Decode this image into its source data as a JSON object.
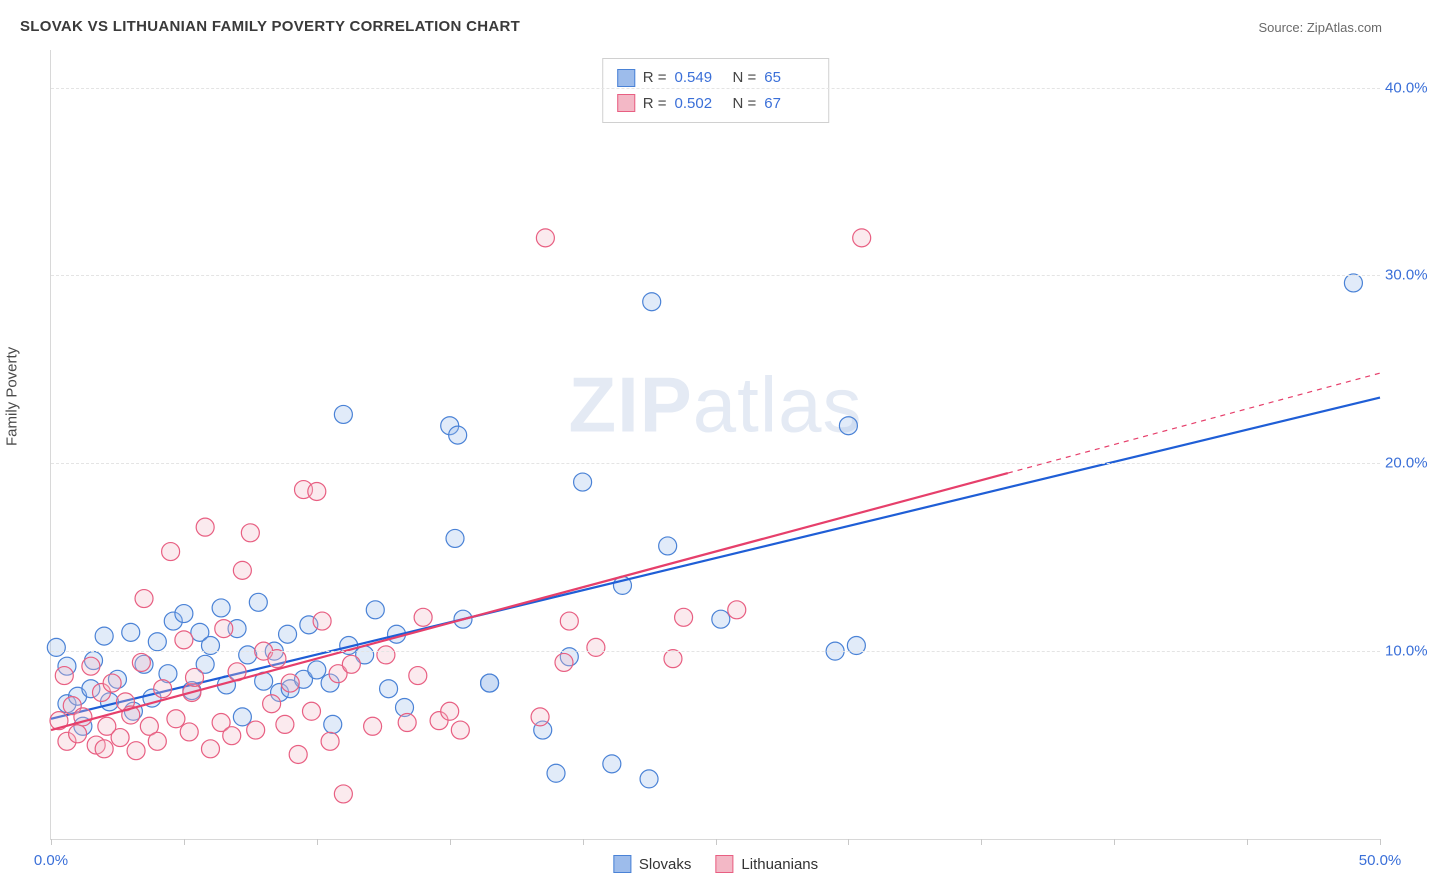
{
  "title": "SLOVAK VS LITHUANIAN FAMILY POVERTY CORRELATION CHART",
  "source_label": "Source: ZipAtlas.com",
  "y_axis_label": "Family Poverty",
  "watermark": {
    "a": "ZIP",
    "b": "atlas"
  },
  "chart": {
    "type": "scatter",
    "xlim": [
      0,
      50
    ],
    "ylim": [
      0,
      42
    ],
    "x_ticks": [
      0,
      5,
      10,
      15,
      20,
      25,
      30,
      35,
      40,
      45,
      50
    ],
    "x_tick_labels": {
      "0": "0.0%",
      "50": "50.0%"
    },
    "y_grid": [
      10,
      20,
      30,
      40
    ],
    "y_tick_labels": {
      "10": "10.0%",
      "20": "20.0%",
      "30": "30.0%",
      "40": "40.0%"
    },
    "background_color": "#ffffff",
    "grid_color": "#e4e4e4",
    "axis_color": "#d8d8d8",
    "tick_color": "#c8c8c8",
    "label_color": "#3a6fd8",
    "point_radius": 9,
    "point_stroke_width": 1.2,
    "point_fill_opacity": 0.3,
    "trend_line_width": 2.2,
    "series": [
      {
        "name": "Slovaks",
        "color_fill": "#9dbceb",
        "color_stroke": "#4a82d6",
        "line_color": "#1f5ed6",
        "r_value": "0.549",
        "n_value": "65",
        "trend": {
          "x1": 0,
          "y1": 6.4,
          "x2": 50,
          "y2": 23.5
        },
        "trend_dash_from_x": null,
        "points": [
          [
            0.2,
            10.2
          ],
          [
            0.6,
            9.2
          ],
          [
            0.6,
            7.2
          ],
          [
            1.0,
            7.6
          ],
          [
            1.2,
            6.0
          ],
          [
            1.5,
            8.0
          ],
          [
            1.6,
            9.5
          ],
          [
            2.0,
            10.8
          ],
          [
            2.2,
            7.3
          ],
          [
            2.5,
            8.5
          ],
          [
            3.0,
            11.0
          ],
          [
            3.1,
            6.8
          ],
          [
            3.5,
            9.3
          ],
          [
            3.8,
            7.5
          ],
          [
            4.0,
            10.5
          ],
          [
            4.4,
            8.8
          ],
          [
            4.6,
            11.6
          ],
          [
            5.0,
            12.0
          ],
          [
            5.3,
            7.9
          ],
          [
            5.6,
            11.0
          ],
          [
            5.8,
            9.3
          ],
          [
            6.0,
            10.3
          ],
          [
            6.4,
            12.3
          ],
          [
            6.6,
            8.2
          ],
          [
            7.0,
            11.2
          ],
          [
            7.2,
            6.5
          ],
          [
            7.4,
            9.8
          ],
          [
            7.8,
            12.6
          ],
          [
            8.0,
            8.4
          ],
          [
            8.4,
            10.0
          ],
          [
            8.6,
            7.8
          ],
          [
            8.9,
            10.9
          ],
          [
            9.0,
            8.0
          ],
          [
            9.5,
            8.5
          ],
          [
            9.7,
            11.4
          ],
          [
            10.0,
            9.0
          ],
          [
            10.5,
            8.3
          ],
          [
            10.6,
            6.1
          ],
          [
            11.0,
            22.6
          ],
          [
            11.2,
            10.3
          ],
          [
            11.8,
            9.8
          ],
          [
            12.2,
            12.2
          ],
          [
            12.7,
            8.0
          ],
          [
            13.0,
            10.9
          ],
          [
            13.3,
            7.0
          ],
          [
            15.0,
            22.0
          ],
          [
            15.2,
            16.0
          ],
          [
            15.3,
            21.5
          ],
          [
            15.5,
            11.7
          ],
          [
            16.5,
            8.3
          ],
          [
            16.5,
            8.3
          ],
          [
            18.5,
            5.8
          ],
          [
            19.0,
            3.5
          ],
          [
            19.5,
            9.7
          ],
          [
            20.0,
            19.0
          ],
          [
            21.1,
            4.0
          ],
          [
            21.5,
            13.5
          ],
          [
            22.5,
            3.2
          ],
          [
            22.6,
            28.6
          ],
          [
            23.2,
            15.6
          ],
          [
            25.2,
            11.7
          ],
          [
            29.5,
            10.0
          ],
          [
            30.0,
            22.0
          ],
          [
            30.3,
            10.3
          ],
          [
            49.0,
            29.6
          ]
        ]
      },
      {
        "name": "Lithuanians",
        "color_fill": "#f3b8c6",
        "color_stroke": "#e85f82",
        "line_color": "#e63f6b",
        "r_value": "0.502",
        "n_value": "67",
        "trend": {
          "x1": 0,
          "y1": 5.8,
          "x2": 50,
          "y2": 24.8
        },
        "trend_dash_from_x": 36,
        "points": [
          [
            0.3,
            6.3
          ],
          [
            0.5,
            8.7
          ],
          [
            0.6,
            5.2
          ],
          [
            0.8,
            7.1
          ],
          [
            1.0,
            5.6
          ],
          [
            1.2,
            6.5
          ],
          [
            1.5,
            9.2
          ],
          [
            1.7,
            5.0
          ],
          [
            1.9,
            7.8
          ],
          [
            2.0,
            4.8
          ],
          [
            2.1,
            6.0
          ],
          [
            2.3,
            8.3
          ],
          [
            2.6,
            5.4
          ],
          [
            2.8,
            7.3
          ],
          [
            3.0,
            6.6
          ],
          [
            3.2,
            4.7
          ],
          [
            3.4,
            9.4
          ],
          [
            3.5,
            12.8
          ],
          [
            3.7,
            6.0
          ],
          [
            4.0,
            5.2
          ],
          [
            4.2,
            8.0
          ],
          [
            4.5,
            15.3
          ],
          [
            4.7,
            6.4
          ],
          [
            5.0,
            10.6
          ],
          [
            5.2,
            5.7
          ],
          [
            5.3,
            7.8
          ],
          [
            5.4,
            8.6
          ],
          [
            5.8,
            16.6
          ],
          [
            6.0,
            4.8
          ],
          [
            6.4,
            6.2
          ],
          [
            6.5,
            11.2
          ],
          [
            6.8,
            5.5
          ],
          [
            7.0,
            8.9
          ],
          [
            7.2,
            14.3
          ],
          [
            7.5,
            16.3
          ],
          [
            7.7,
            5.8
          ],
          [
            8.0,
            10.0
          ],
          [
            8.3,
            7.2
          ],
          [
            8.5,
            9.6
          ],
          [
            8.8,
            6.1
          ],
          [
            9.0,
            8.3
          ],
          [
            9.3,
            4.5
          ],
          [
            9.5,
            18.6
          ],
          [
            9.8,
            6.8
          ],
          [
            10.0,
            18.5
          ],
          [
            10.2,
            11.6
          ],
          [
            10.5,
            5.2
          ],
          [
            10.8,
            8.8
          ],
          [
            11.0,
            2.4
          ],
          [
            11.3,
            9.3
          ],
          [
            12.1,
            6.0
          ],
          [
            12.6,
            9.8
          ],
          [
            13.4,
            6.2
          ],
          [
            13.8,
            8.7
          ],
          [
            14.0,
            11.8
          ],
          [
            14.6,
            6.3
          ],
          [
            15.0,
            6.8
          ],
          [
            15.4,
            5.8
          ],
          [
            18.4,
            6.5
          ],
          [
            18.6,
            32.0
          ],
          [
            19.3,
            9.4
          ],
          [
            19.5,
            11.6
          ],
          [
            20.5,
            10.2
          ],
          [
            23.4,
            9.6
          ],
          [
            23.8,
            11.8
          ],
          [
            25.8,
            12.2
          ],
          [
            30.5,
            32.0
          ]
        ]
      }
    ]
  },
  "stats_legend": {
    "r_label": "R =",
    "n_label": "N ="
  },
  "bottom_legend": {
    "items": [
      "Slovaks",
      "Lithuanians"
    ]
  }
}
